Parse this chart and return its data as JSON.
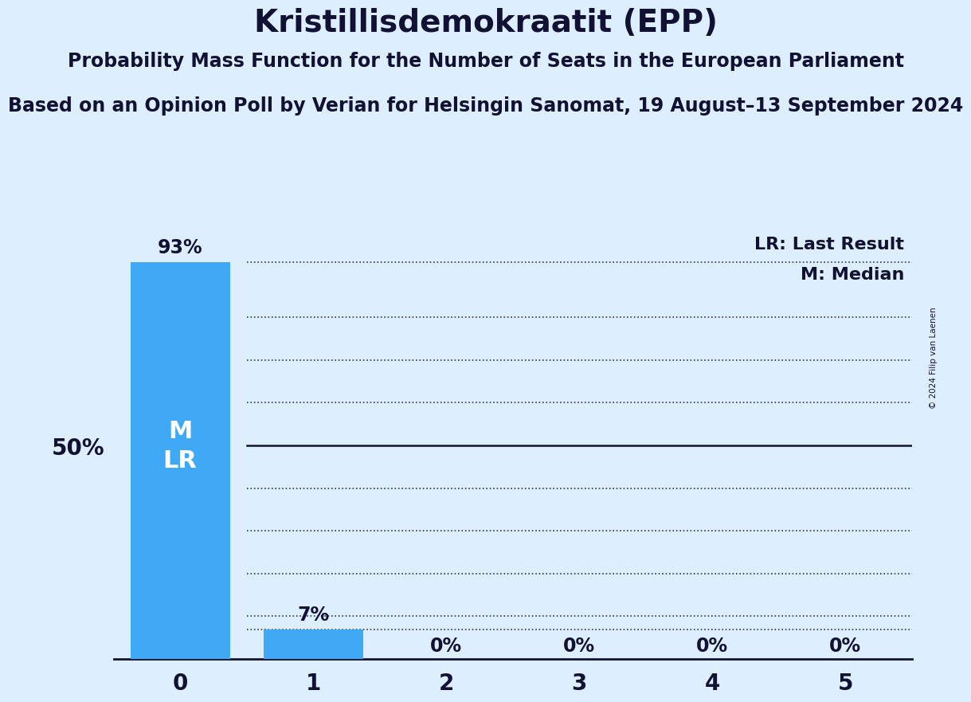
{
  "title": "Kristillisdemokraatit (EPP)",
  "subtitle": "Probability Mass Function for the Number of Seats in the European Parliament",
  "source_line": "Based on an Opinion Poll by Verian for Helsingin Sanomat, 19 August–13 September 2024",
  "copyright": "© 2024 Filip van Laenen",
  "categories": [
    0,
    1,
    2,
    3,
    4,
    5
  ],
  "values": [
    0.93,
    0.07,
    0.0,
    0.0,
    0.0,
    0.0
  ],
  "bar_color": "#3fa9f5",
  "background_color": "#ddeeff",
  "median_seat": 0,
  "lr_seat": 0,
  "legend_lr": "LR: Last Result",
  "legend_m": "M: Median",
  "title_fontsize": 28,
  "subtitle_fontsize": 17,
  "source_fontsize": 17,
  "label_fontsize": 17,
  "tick_fontsize": 20,
  "ylabel_fontsize": 20,
  "inner_label_fontsize": 22,
  "legend_fontsize": 16
}
